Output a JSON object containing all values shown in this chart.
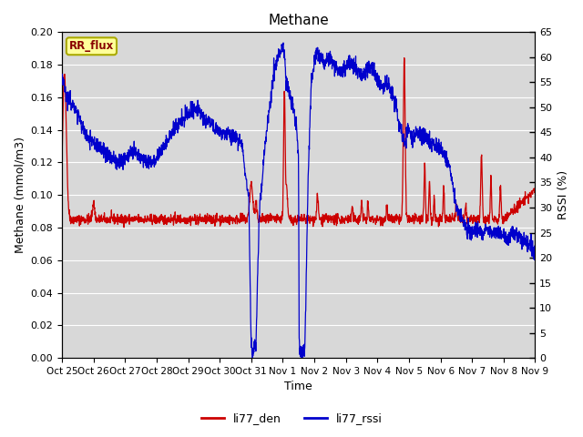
{
  "title": "Methane",
  "ylabel_left": "Methane (mmol/m3)",
  "ylabel_right": "RSSI (%)",
  "xlabel": "Time",
  "ylim_left": [
    0.0,
    0.2
  ],
  "ylim_right": [
    0,
    65
  ],
  "yticks_left": [
    0.0,
    0.02,
    0.04,
    0.06,
    0.08,
    0.1,
    0.12,
    0.14,
    0.16,
    0.18,
    0.2
  ],
  "yticks_right": [
    0,
    5,
    10,
    15,
    20,
    25,
    30,
    35,
    40,
    45,
    50,
    55,
    60,
    65
  ],
  "xtick_labels": [
    "Oct 25",
    "Oct 26",
    "Oct 27",
    "Oct 28",
    "Oct 29",
    "Oct 30",
    "Oct 31",
    "Nov 1",
    "Nov 2",
    "Nov 3",
    "Nov 4",
    "Nov 5",
    "Nov 6",
    "Nov 7",
    "Nov 8",
    "Nov 9"
  ],
  "legend_labels": [
    "li77_den",
    "li77_rssi"
  ],
  "legend_colors": [
    "#cc0000",
    "#0000cc"
  ],
  "line_colors": [
    "#cc0000",
    "#0000cc"
  ],
  "plot_bg_color": "#d8d8d8",
  "grid_color": "#ffffff",
  "rr_flux_label": "RR_flux",
  "rr_flux_bg": "#ffff99",
  "rr_flux_border": "#aaaa00",
  "rr_flux_color": "#880000"
}
